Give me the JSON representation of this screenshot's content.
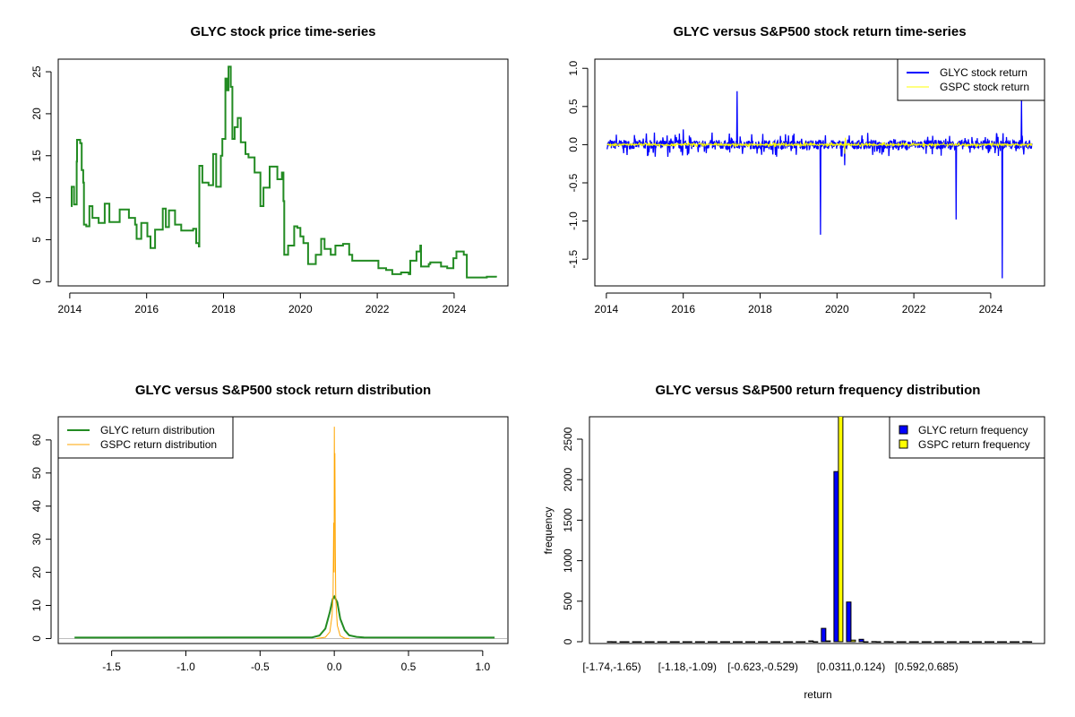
{
  "colors": {
    "glyc_price": "#228B22",
    "glyc_return": "#0000FF",
    "gspc_return": "#FFFF00",
    "glyc_density": "#228B22",
    "gspc_density": "#FFA500",
    "zero_line": "#BEBEBE"
  },
  "chart_data": [
    {
      "type": "line",
      "title": "GLYC stock price time-series",
      "xlabel": "",
      "ylabel": "",
      "xlim": [
        2013.7,
        2025.4
      ],
      "ylim": [
        -0.5,
        26.5
      ],
      "xticks": [
        2014,
        2016,
        2018,
        2020,
        2022,
        2024
      ],
      "yticks": [
        0,
        5,
        10,
        15,
        20,
        25
      ],
      "series": [
        {
          "name": "GLYC price",
          "points": [
            [
              2014.03,
              9
            ],
            [
              2014.05,
              11.3
            ],
            [
              2014.11,
              9.2
            ],
            [
              2014.18,
              14.3
            ],
            [
              2014.19,
              16.9
            ],
            [
              2014.27,
              16.5
            ],
            [
              2014.31,
              13.3
            ],
            [
              2014.35,
              11.8
            ],
            [
              2014.37,
              6.8
            ],
            [
              2014.43,
              6.6
            ],
            [
              2014.51,
              9
            ],
            [
              2014.59,
              7.6
            ],
            [
              2014.75,
              7
            ],
            [
              2014.91,
              9.3
            ],
            [
              2015.03,
              7.1
            ],
            [
              2015.3,
              8.6
            ],
            [
              2015.54,
              7.6
            ],
            [
              2015.7,
              6.8
            ],
            [
              2015.74,
              5.1
            ],
            [
              2015.86,
              7
            ],
            [
              2016.02,
              5.4
            ],
            [
              2016.1,
              4
            ],
            [
              2016.22,
              6.2
            ],
            [
              2016.42,
              8.7
            ],
            [
              2016.5,
              6.5
            ],
            [
              2016.58,
              8.5
            ],
            [
              2016.74,
              6.8
            ],
            [
              2016.9,
              6.1
            ],
            [
              2017.21,
              6.3
            ],
            [
              2017.29,
              4.6
            ],
            [
              2017.36,
              4.2
            ],
            [
              2017.37,
              13.8
            ],
            [
              2017.45,
              11.8
            ],
            [
              2017.61,
              11.5
            ],
            [
              2017.73,
              15.2
            ],
            [
              2017.81,
              11.3
            ],
            [
              2017.93,
              15
            ],
            [
              2017.97,
              17
            ],
            [
              2018.05,
              24.2
            ],
            [
              2018.09,
              22.8
            ],
            [
              2018.13,
              25.6
            ],
            [
              2018.19,
              23.2
            ],
            [
              2018.23,
              17
            ],
            [
              2018.29,
              18.4
            ],
            [
              2018.37,
              19.5
            ],
            [
              2018.45,
              16.6
            ],
            [
              2018.57,
              15.2
            ],
            [
              2018.65,
              14.8
            ],
            [
              2018.81,
              13
            ],
            [
              2018.96,
              9
            ],
            [
              2019.04,
              11.2
            ],
            [
              2019.2,
              13.7
            ],
            [
              2019.4,
              12.2
            ],
            [
              2019.52,
              13
            ],
            [
              2019.56,
              9.6
            ],
            [
              2019.58,
              3.2
            ],
            [
              2019.68,
              4.3
            ],
            [
              2019.84,
              6.6
            ],
            [
              2019.92,
              6.4
            ],
            [
              2020,
              5.4
            ],
            [
              2020.08,
              4.6
            ],
            [
              2020.2,
              2.1
            ],
            [
              2020.4,
              3.2
            ],
            [
              2020.54,
              5.1
            ],
            [
              2020.63,
              3.9
            ],
            [
              2020.79,
              3.2
            ],
            [
              2020.91,
              4.3
            ],
            [
              2021.11,
              4.5
            ],
            [
              2021.27,
              3.2
            ],
            [
              2021.35,
              2.5
            ],
            [
              2021.59,
              2.5
            ],
            [
              2021.83,
              2.5
            ],
            [
              2022.03,
              1.6
            ],
            [
              2022.23,
              1.4
            ],
            [
              2022.39,
              0.9
            ],
            [
              2022.62,
              1.1
            ],
            [
              2022.82,
              0.9
            ],
            [
              2022.86,
              2.5
            ],
            [
              2023.02,
              3.6
            ],
            [
              2023.12,
              4.3
            ],
            [
              2023.14,
              1.8
            ],
            [
              2023.34,
              2.1
            ],
            [
              2023.38,
              2.3
            ],
            [
              2023.66,
              1.8
            ],
            [
              2023.82,
              1.6
            ],
            [
              2023.98,
              2.8
            ],
            [
              2024.06,
              3.6
            ],
            [
              2024.25,
              3.2
            ],
            [
              2024.33,
              0.5
            ],
            [
              2024.61,
              0.5
            ],
            [
              2024.85,
              0.6
            ],
            [
              2025.09,
              0.5
            ]
          ]
        }
      ]
    },
    {
      "type": "line",
      "title": "GLYC versus S&P500 stock return time-series",
      "xlim": [
        2013.7,
        2025.4
      ],
      "ylim": [
        -1.85,
        1.12
      ],
      "xticks": [
        2014,
        2016,
        2018,
        2020,
        2022,
        2024
      ],
      "yticks": [
        1.0,
        0.5,
        0.0,
        -0.5,
        -1.0,
        -1.5
      ],
      "ytick_labels": [
        "1.0",
        "0.5",
        "0.0",
        "-0.5",
        "-1.0",
        "-1.5"
      ],
      "legend": {
        "position": "top-right",
        "entries": [
          "GLYC stock return",
          "GSPC stock return"
        ]
      },
      "series": [
        {
          "name": "GLYC stock return",
          "typical_amplitude": 0.1,
          "spikes": [
            [
              2016.0,
              0.2
            ],
            [
              2017.4,
              0.7
            ],
            [
              2019.57,
              -1.18
            ],
            [
              2020.2,
              -0.27
            ],
            [
              2023.1,
              -0.98
            ],
            [
              2024.3,
              -1.75
            ],
            [
              2024.8,
              0.6
            ]
          ]
        },
        {
          "name": "GSPC stock return",
          "typical_amplitude": 0.02,
          "spikes": [
            [
              2020.2,
              -0.12
            ],
            [
              2020.22,
              0.09
            ]
          ]
        }
      ]
    },
    {
      "type": "line",
      "title": "GLYC versus S&P500 stock return distribution",
      "xlim": [
        -1.86,
        1.17
      ],
      "ylim": [
        -1.5,
        67
      ],
      "xticks": [
        -1.5,
        -1.0,
        -0.5,
        0.0,
        0.5,
        1.0
      ],
      "xtick_labels": [
        "-1.5",
        "-1.0",
        "-0.5",
        "0.0",
        "0.5",
        "1.0"
      ],
      "yticks": [
        0,
        10,
        20,
        30,
        40,
        50,
        60
      ],
      "legend": {
        "position": "top-left",
        "entries": [
          "GLYC return distribution",
          "GSPC return distribution"
        ]
      },
      "series": [
        {
          "name": "GLYC return distribution",
          "points": [
            [
              -1.75,
              0.3
            ],
            [
              -0.15,
              0.35
            ],
            [
              -0.1,
              0.9
            ],
            [
              -0.06,
              3
            ],
            [
              -0.03,
              8
            ],
            [
              -0.01,
              12
            ],
            [
              0,
              12.7
            ],
            [
              0.02,
              11
            ],
            [
              0.04,
              6
            ],
            [
              0.07,
              2.5
            ],
            [
              0.1,
              1
            ],
            [
              0.15,
              0.5
            ],
            [
              0.2,
              0.35
            ],
            [
              1.08,
              0.3
            ]
          ]
        },
        {
          "name": "GSPC return distribution",
          "points": [
            [
              -0.12,
              0
            ],
            [
              -0.06,
              0.4
            ],
            [
              -0.03,
              2
            ],
            [
              -0.015,
              7
            ],
            [
              -0.008,
              13
            ],
            [
              -0.004,
              35
            ],
            [
              -0.001,
              20
            ],
            [
              0,
              64
            ],
            [
              0.002,
              40
            ],
            [
              0.004,
              56
            ],
            [
              0.007,
              27
            ],
            [
              0.01,
              12
            ],
            [
              0.02,
              4
            ],
            [
              0.04,
              0.8
            ],
            [
              0.07,
              0.1
            ],
            [
              0.1,
              0
            ]
          ]
        }
      ]
    },
    {
      "type": "bar",
      "title": "GLYC versus S&P500 return frequency distribution",
      "xlabel": "return",
      "ylabel": "frequency",
      "ylim": [
        0,
        2780
      ],
      "yticks": [
        0,
        500,
        1000,
        1500,
        2000,
        2500
      ],
      "bin_count": 34,
      "category_labels": [
        {
          "bin": 0,
          "label": "[-1.74,-1.65)"
        },
        {
          "bin": 6,
          "label": "[-1.18,-1.09)"
        },
        {
          "bin": 12,
          "label": "[-0.623,-0.529)"
        },
        {
          "bin": 19,
          "label": "[0.0311,0.124)"
        },
        {
          "bin": 25,
          "label": "[0.592,0.685)"
        }
      ],
      "legend": {
        "position": "top-right",
        "entries": [
          "GLYC return frequency",
          "GSPC return frequency"
        ]
      },
      "series": [
        {
          "name": "GLYC return frequency",
          "values": [
            1,
            0,
            0,
            0,
            0,
            0,
            0,
            0,
            0,
            0,
            0,
            0,
            0,
            0,
            0,
            0,
            10,
            165,
            2100,
            490,
            30,
            2,
            1,
            0,
            0,
            0,
            0,
            0,
            0,
            0,
            0,
            0,
            0,
            1
          ]
        },
        {
          "name": "GSPC return frequency",
          "values": [
            0,
            0,
            0,
            0,
            0,
            0,
            0,
            0,
            0,
            0,
            0,
            0,
            0,
            0,
            0,
            0,
            0,
            10,
            2800,
            20,
            0,
            0,
            0,
            0,
            0,
            0,
            0,
            0,
            0,
            0,
            0,
            0,
            0,
            0
          ]
        }
      ]
    }
  ]
}
